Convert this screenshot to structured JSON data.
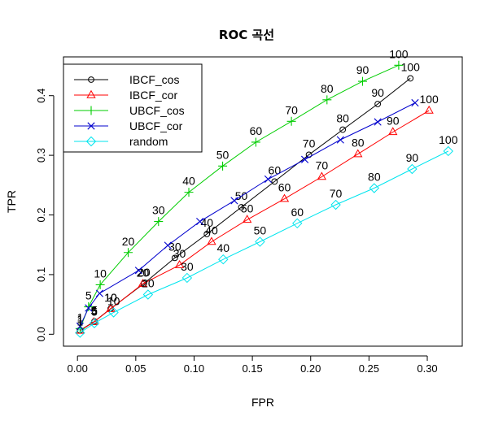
{
  "chart_data": {
    "type": "line",
    "title": "ROC 곡선",
    "xlabel": "FPR",
    "ylabel": "TPR",
    "xlim": [
      -0.012,
      0.33
    ],
    "ylim": [
      -0.02,
      0.465
    ],
    "xticks": [
      "0.00",
      "0.05",
      "0.10",
      "0.15",
      "0.20",
      "0.25",
      "0.30"
    ],
    "yticks": [
      "0.0",
      "0.1",
      "0.2",
      "0.3",
      "0.4"
    ],
    "grid": false,
    "legend_position": "top-left",
    "series": [
      {
        "name": "IBCF_cos",
        "color": "#000000",
        "marker": "circle",
        "points": [
          {
            "x": 0.0022,
            "y": 0.0065,
            "label": "1"
          },
          {
            "x": 0.0145,
            "y": 0.0215,
            "label": "5"
          },
          {
            "x": 0.0285,
            "y": 0.043,
            "label": "10"
          },
          {
            "x": 0.057,
            "y": 0.085,
            "label": "20"
          },
          {
            "x": 0.0835,
            "y": 0.128,
            "label": "30"
          },
          {
            "x": 0.111,
            "y": 0.168,
            "label": "40"
          },
          {
            "x": 0.1405,
            "y": 0.213,
            "label": "50"
          },
          {
            "x": 0.169,
            "y": 0.256,
            "label": "60"
          },
          {
            "x": 0.1985,
            "y": 0.301,
            "label": "70"
          },
          {
            "x": 0.2275,
            "y": 0.343,
            "label": "80"
          },
          {
            "x": 0.2575,
            "y": 0.386,
            "label": "90"
          },
          {
            "x": 0.2855,
            "y": 0.429,
            "label": "100"
          }
        ]
      },
      {
        "name": "IBCF_cor",
        "color": "#ff0000",
        "marker": "triangle",
        "points": [
          {
            "x": 0.0022,
            "y": 0.006,
            "label": "1"
          },
          {
            "x": 0.014,
            "y": 0.0205,
            "label": "5"
          },
          {
            "x": 0.0285,
            "y": 0.0425,
            "label": "10"
          },
          {
            "x": 0.056,
            "y": 0.0845,
            "label": "20"
          },
          {
            "x": 0.0875,
            "y": 0.116,
            "label": "30"
          },
          {
            "x": 0.115,
            "y": 0.155,
            "label": "40"
          },
          {
            "x": 0.1455,
            "y": 0.192,
            "label": "50"
          },
          {
            "x": 0.1775,
            "y": 0.227,
            "label": "60"
          },
          {
            "x": 0.2095,
            "y": 0.264,
            "label": "70"
          },
          {
            "x": 0.2405,
            "y": 0.302,
            "label": "80"
          },
          {
            "x": 0.2705,
            "y": 0.339,
            "label": "90"
          },
          {
            "x": 0.3015,
            "y": 0.375,
            "label": "100"
          }
        ]
      },
      {
        "name": "UBCF_cos",
        "color": "#00cd00",
        "marker": "plus",
        "points": [
          {
            "x": 0.0022,
            "y": 0.0095,
            "label": "1"
          },
          {
            "x": 0.0095,
            "y": 0.046,
            "label": "5"
          },
          {
            "x": 0.0195,
            "y": 0.083,
            "label": "10"
          },
          {
            "x": 0.0435,
            "y": 0.137,
            "label": "20"
          },
          {
            "x": 0.0695,
            "y": 0.189,
            "label": "30"
          },
          {
            "x": 0.0955,
            "y": 0.238,
            "label": "40"
          },
          {
            "x": 0.1245,
            "y": 0.282,
            "label": "50"
          },
          {
            "x": 0.153,
            "y": 0.322,
            "label": "60"
          },
          {
            "x": 0.1835,
            "y": 0.357,
            "label": "70"
          },
          {
            "x": 0.214,
            "y": 0.393,
            "label": "80"
          },
          {
            "x": 0.2445,
            "y": 0.424,
            "label": "90"
          },
          {
            "x": 0.2755,
            "y": 0.451,
            "label": "100"
          }
        ]
      },
      {
        "name": "UBCF_cor",
        "color": "#0000cd",
        "marker": "cross",
        "points": [
          {
            "x": 0.0022,
            "y": 0.0135,
            "label": "1"
          },
          {
            "x": 0.0095,
            "y": 0.044,
            "label": "5"
          },
          {
            "x": 0.019,
            "y": 0.0685,
            "label": "10"
          },
          {
            "x": 0.0525,
            "y": 0.107,
            "label": "20"
          },
          {
            "x": 0.0775,
            "y": 0.149,
            "label": "30"
          },
          {
            "x": 0.105,
            "y": 0.189,
            "label": "40"
          },
          {
            "x": 0.1345,
            "y": 0.224,
            "label": "50"
          },
          {
            "x": 0.1635,
            "y": 0.26,
            "label": "60"
          },
          {
            "x": 0.195,
            "y": 0.293,
            "label": "70"
          },
          {
            "x": 0.2255,
            "y": 0.326,
            "label": "80"
          },
          {
            "x": 0.2575,
            "y": 0.356,
            "label": "90"
          },
          {
            "x": 0.2895,
            "y": 0.388,
            "label": "100"
          }
        ]
      },
      {
        "name": "random",
        "color": "#00e5ee",
        "marker": "diamond",
        "points": [
          {
            "x": 0.0022,
            "y": 0.0025,
            "label": "1"
          },
          {
            "x": 0.0145,
            "y": 0.0185,
            "label": "5"
          },
          {
            "x": 0.031,
            "y": 0.0365,
            "label": "10"
          },
          {
            "x": 0.0605,
            "y": 0.0665,
            "label": "20"
          },
          {
            "x": 0.094,
            "y": 0.0945,
            "label": "30"
          },
          {
            "x": 0.125,
            "y": 0.1255,
            "label": "40"
          },
          {
            "x": 0.1565,
            "y": 0.155,
            "label": "50"
          },
          {
            "x": 0.1885,
            "y": 0.186,
            "label": "60"
          },
          {
            "x": 0.2215,
            "y": 0.217,
            "label": "70"
          },
          {
            "x": 0.2545,
            "y": 0.245,
            "label": "80"
          },
          {
            "x": 0.287,
            "y": 0.277,
            "label": "90"
          },
          {
            "x": 0.318,
            "y": 0.307,
            "label": "100"
          }
        ]
      }
    ]
  }
}
